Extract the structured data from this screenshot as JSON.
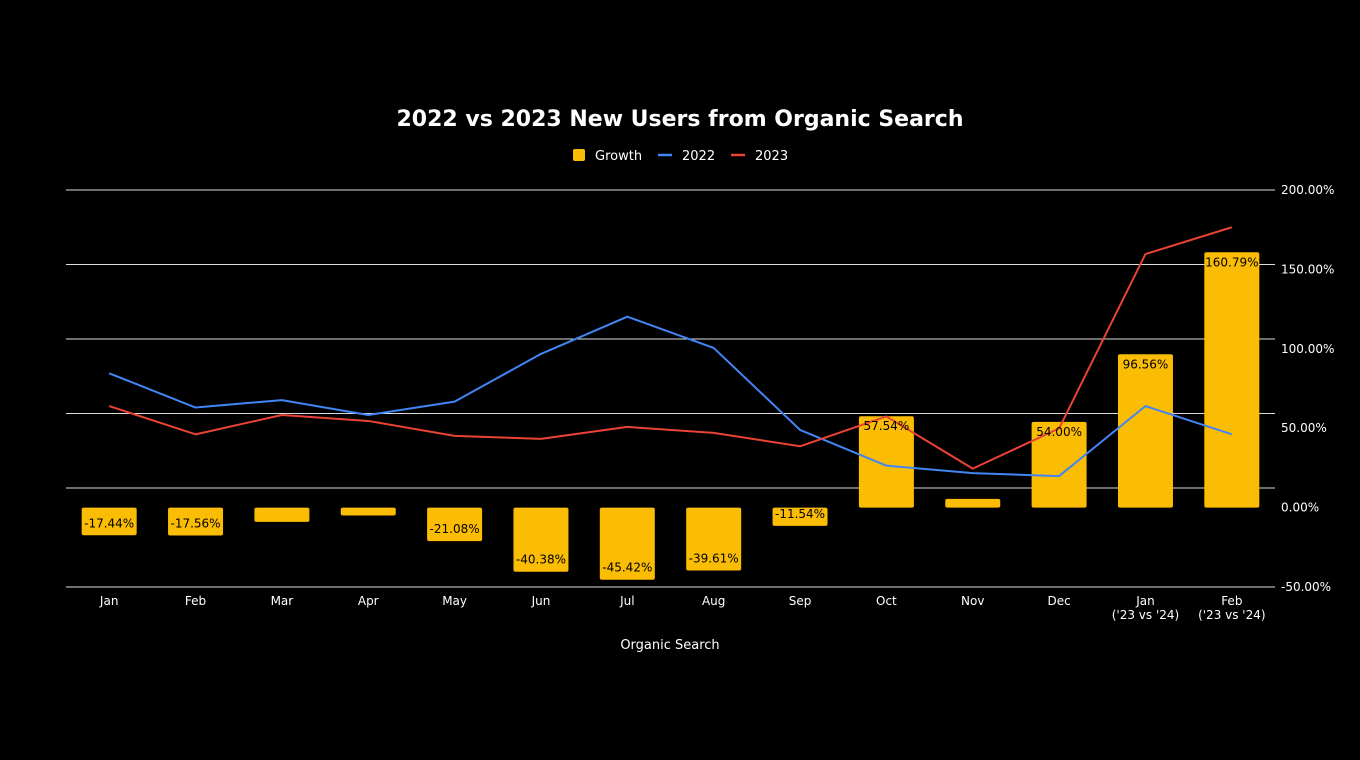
{
  "chart_data": {
    "type": "bar",
    "title": "2022 vs 2023 New Users from Organic Search",
    "xlabel": "Organic Search",
    "ylabel": "",
    "legend_position": "top",
    "grid": true,
    "categories": [
      [
        "Jan"
      ],
      [
        "Feb"
      ],
      [
        "Mar"
      ],
      [
        "Apr"
      ],
      [
        "May"
      ],
      [
        "Jun"
      ],
      [
        "Jul"
      ],
      [
        "Aug"
      ],
      [
        "Sep"
      ],
      [
        "Oct"
      ],
      [
        "Nov"
      ],
      [
        "Dec"
      ],
      [
        "Jan",
        "('23 vs '24)"
      ],
      [
        "Feb",
        "('23 vs '24)"
      ]
    ],
    "y_right": {
      "ylim": [
        -50,
        200
      ],
      "ticks": [
        -50,
        0,
        50,
        100,
        150,
        200
      ],
      "tick_labels": [
        "-50.00%",
        "0.00%",
        "50.00%",
        "100.00%",
        "150.00%",
        "200.00%"
      ]
    },
    "series": [
      {
        "name": "Growth",
        "type": "bar",
        "axis": "right",
        "color": "#FBBC04",
        "values": [
          -17.44,
          -17.56,
          -9.0,
          -5.0,
          -21.08,
          -40.38,
          -45.42,
          -39.61,
          -11.54,
          57.54,
          5.5,
          54.0,
          96.56,
          160.79
        ],
        "labels": [
          "-17.44%",
          "-17.56%",
          "",
          "",
          "-21.08%",
          "-40.38%",
          "-45.42%",
          "-39.61%",
          "-11.54%",
          "57.54%",
          "",
          "54.00%",
          "96.56%",
          "160.79%"
        ]
      },
      {
        "name": "2022",
        "type": "line",
        "axis": "left",
        "color": "#4285F4",
        "values": [
          77,
          54,
          59,
          49,
          58,
          90,
          115,
          94,
          39,
          15,
          10,
          8,
          55,
          36
        ]
      },
      {
        "name": "2023",
        "type": "line",
        "axis": "left",
        "color": "#EA4335",
        "values": [
          55,
          36,
          49,
          45,
          35,
          33,
          41,
          37,
          28,
          48,
          13,
          40,
          157,
          175
        ]
      }
    ]
  }
}
